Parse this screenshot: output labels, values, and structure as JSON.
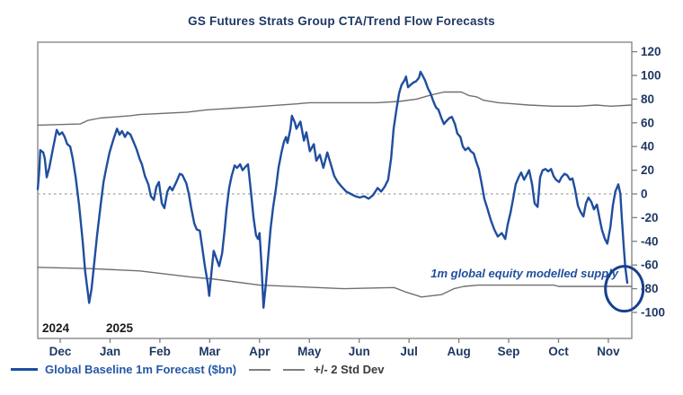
{
  "window": {
    "title": "GS Futures Strats Group CTA/Trend Flow Forecasts"
  },
  "legend": {
    "forecast_label": "Global Baseline 1m Forecast ($bn)",
    "stddev_label": "+/- 2 Std Dev"
  },
  "colors": {
    "line_blue": "#1f4e9e",
    "band_gray": "#6f6f6f",
    "text_navy": "#1f3864",
    "year_text": "#1a1a1a",
    "zero_dotted": "#b0b0b0",
    "axis": "#7f7f7f",
    "annotation_navy": "#17418c"
  },
  "chart_data": {
    "type": "line",
    "title": "GS Futures Strats Group CTA/Trend Flow Forecasts",
    "xlabel": "",
    "ylabel": "",
    "x_axis": {
      "unit": "months, Dec 2024 - Nov 2025 (0 = Dec tick)",
      "tick_labels": [
        "Dec",
        "Jan",
        "Feb",
        "Mar",
        "Apr",
        "May",
        "Jun",
        "Jul",
        "Aug",
        "Sep",
        "Oct",
        "Nov"
      ],
      "year_labels": [
        {
          "text": "2024",
          "pos": -0.09
        },
        {
          "text": "2025",
          "pos": 1.19
        }
      ]
    },
    "y_axis": {
      "side": "right",
      "ticks": [
        120,
        100,
        80,
        60,
        40,
        20,
        0,
        -20,
        -40,
        -60,
        -80,
        -100
      ],
      "range": [
        -122,
        128
      ]
    },
    "zero_line": true,
    "grid": false,
    "legend_position": "bottom-left",
    "annotation": {
      "text": "1m global equity modelled supply",
      "ellipse": {
        "cx_month": 11.32,
        "cy_value": -80
      }
    },
    "series": [
      {
        "name": "Global Baseline 1m Forecast ($bn)",
        "style": "solid",
        "width": 2.4,
        "color": "#1f4e9e",
        "points": [
          [
            -0.45,
            4
          ],
          [
            -0.42,
            20
          ],
          [
            -0.4,
            37
          ],
          [
            -0.34,
            35
          ],
          [
            -0.31,
            30
          ],
          [
            -0.27,
            14
          ],
          [
            -0.22,
            22
          ],
          [
            -0.16,
            35
          ],
          [
            -0.07,
            54
          ],
          [
            -0.02,
            50
          ],
          [
            0.04,
            52
          ],
          [
            0.09,
            48
          ],
          [
            0.14,
            42
          ],
          [
            0.2,
            40
          ],
          [
            0.25,
            30
          ],
          [
            0.31,
            14
          ],
          [
            0.38,
            -10
          ],
          [
            0.45,
            -40
          ],
          [
            0.5,
            -65
          ],
          [
            0.58,
            -92
          ],
          [
            0.63,
            -80
          ],
          [
            0.69,
            -55
          ],
          [
            0.74,
            -35
          ],
          [
            0.81,
            -10
          ],
          [
            0.87,
            10
          ],
          [
            0.92,
            21
          ],
          [
            0.99,
            35
          ],
          [
            1.06,
            45
          ],
          [
            1.14,
            55
          ],
          [
            1.19,
            50
          ],
          [
            1.24,
            53
          ],
          [
            1.3,
            48
          ],
          [
            1.35,
            52
          ],
          [
            1.41,
            50
          ],
          [
            1.46,
            45
          ],
          [
            1.53,
            38
          ],
          [
            1.59,
            30
          ],
          [
            1.64,
            25
          ],
          [
            1.7,
            15
          ],
          [
            1.77,
            8
          ],
          [
            1.82,
            -2
          ],
          [
            1.88,
            -5
          ],
          [
            1.93,
            6
          ],
          [
            1.98,
            10
          ],
          [
            2.04,
            -8
          ],
          [
            2.09,
            -12
          ],
          [
            2.15,
            2
          ],
          [
            2.2,
            6
          ],
          [
            2.25,
            3
          ],
          [
            2.33,
            10
          ],
          [
            2.4,
            17
          ],
          [
            2.45,
            16
          ],
          [
            2.53,
            9
          ],
          [
            2.58,
            0
          ],
          [
            2.63,
            -12
          ],
          [
            2.69,
            -25
          ],
          [
            2.74,
            -30
          ],
          [
            2.8,
            -31
          ],
          [
            2.85,
            -45
          ],
          [
            2.9,
            -60
          ],
          [
            2.96,
            -75
          ],
          [
            2.99,
            -86
          ],
          [
            3.05,
            -60
          ],
          [
            3.08,
            -48
          ],
          [
            3.14,
            -55
          ],
          [
            3.19,
            -61
          ],
          [
            3.25,
            -50
          ],
          [
            3.3,
            -30
          ],
          [
            3.34,
            -12
          ],
          [
            3.39,
            5
          ],
          [
            3.44,
            15
          ],
          [
            3.5,
            24
          ],
          [
            3.55,
            22
          ],
          [
            3.61,
            25
          ],
          [
            3.66,
            20
          ],
          [
            3.72,
            23
          ],
          [
            3.77,
            25
          ],
          [
            3.82,
            5
          ],
          [
            3.88,
            -20
          ],
          [
            3.93,
            -35
          ],
          [
            3.97,
            -38
          ],
          [
            4.0,
            -33
          ],
          [
            4.04,
            -60
          ],
          [
            4.08,
            -96
          ],
          [
            4.13,
            -75
          ],
          [
            4.17,
            -55
          ],
          [
            4.22,
            -30
          ],
          [
            4.27,
            -12
          ],
          [
            4.33,
            5
          ],
          [
            4.38,
            22
          ],
          [
            4.44,
            35
          ],
          [
            4.49,
            44
          ],
          [
            4.53,
            48
          ],
          [
            4.56,
            43
          ],
          [
            4.62,
            55
          ],
          [
            4.65,
            66
          ],
          [
            4.71,
            60
          ],
          [
            4.74,
            55
          ],
          [
            4.82,
            61
          ],
          [
            4.89,
            45
          ],
          [
            4.94,
            52
          ],
          [
            5.01,
            36
          ],
          [
            5.09,
            42
          ],
          [
            5.14,
            28
          ],
          [
            5.21,
            33
          ],
          [
            5.28,
            22
          ],
          [
            5.36,
            35
          ],
          [
            5.43,
            25
          ],
          [
            5.5,
            15
          ],
          [
            5.57,
            10
          ],
          [
            5.65,
            6
          ],
          [
            5.74,
            2
          ],
          [
            5.83,
            0
          ],
          [
            5.92,
            -2
          ],
          [
            6.01,
            -3
          ],
          [
            6.1,
            -2
          ],
          [
            6.19,
            -4
          ],
          [
            6.28,
            -1
          ],
          [
            6.37,
            5
          ],
          [
            6.44,
            2
          ],
          [
            6.51,
            6
          ],
          [
            6.58,
            12
          ],
          [
            6.64,
            30
          ],
          [
            6.69,
            55
          ],
          [
            6.75,
            72
          ],
          [
            6.8,
            85
          ],
          [
            6.85,
            92
          ],
          [
            6.91,
            96
          ],
          [
            6.94,
            99
          ],
          [
            6.98,
            90
          ],
          [
            7.03,
            92
          ],
          [
            7.09,
            94
          ],
          [
            7.14,
            95
          ],
          [
            7.2,
            98
          ],
          [
            7.23,
            103
          ],
          [
            7.27,
            100
          ],
          [
            7.32,
            96
          ],
          [
            7.38,
            89
          ],
          [
            7.43,
            85
          ],
          [
            7.49,
            78
          ],
          [
            7.54,
            73
          ],
          [
            7.59,
            71
          ],
          [
            7.65,
            64
          ],
          [
            7.7,
            59
          ],
          [
            7.76,
            62
          ],
          [
            7.81,
            64
          ],
          [
            7.86,
            65
          ],
          [
            7.92,
            59
          ],
          [
            7.97,
            51
          ],
          [
            8.03,
            48
          ],
          [
            8.08,
            40
          ],
          [
            8.13,
            37
          ],
          [
            8.19,
            39
          ],
          [
            8.24,
            36
          ],
          [
            8.3,
            34
          ],
          [
            8.35,
            27
          ],
          [
            8.4,
            21
          ],
          [
            8.46,
            8
          ],
          [
            8.51,
            -4
          ],
          [
            8.57,
            -12
          ],
          [
            8.64,
            -22
          ],
          [
            8.71,
            -30
          ],
          [
            8.78,
            -36
          ],
          [
            8.86,
            -33
          ],
          [
            8.93,
            -38
          ],
          [
            8.98,
            -26
          ],
          [
            9.04,
            -15
          ],
          [
            9.09,
            -4
          ],
          [
            9.14,
            8
          ],
          [
            9.2,
            14
          ],
          [
            9.25,
            18
          ],
          [
            9.31,
            12
          ],
          [
            9.36,
            16
          ],
          [
            9.41,
            20
          ],
          [
            9.47,
            8
          ],
          [
            9.52,
            -8
          ],
          [
            9.58,
            -11
          ],
          [
            9.63,
            14
          ],
          [
            9.68,
            20
          ],
          [
            9.74,
            21
          ],
          [
            9.79,
            19
          ],
          [
            9.85,
            21
          ],
          [
            9.9,
            15
          ],
          [
            9.95,
            12
          ],
          [
            10.01,
            10
          ],
          [
            10.06,
            14
          ],
          [
            10.12,
            17
          ],
          [
            10.17,
            16
          ],
          [
            10.23,
            12
          ],
          [
            10.28,
            13
          ],
          [
            10.33,
            4
          ],
          [
            10.39,
            -10
          ],
          [
            10.44,
            -15
          ],
          [
            10.5,
            -19
          ],
          [
            10.55,
            -8
          ],
          [
            10.6,
            -3
          ],
          [
            10.66,
            -7
          ],
          [
            10.71,
            -13
          ],
          [
            10.77,
            -9
          ],
          [
            10.82,
            -20
          ],
          [
            10.87,
            -30
          ],
          [
            10.93,
            -38
          ],
          [
            10.98,
            -42
          ],
          [
            11.04,
            -28
          ],
          [
            11.09,
            -10
          ],
          [
            11.14,
            2
          ],
          [
            11.2,
            8
          ],
          [
            11.24,
            0
          ],
          [
            11.27,
            -20
          ],
          [
            11.31,
            -45
          ],
          [
            11.34,
            -62
          ],
          [
            11.38,
            -75
          ]
        ]
      },
      {
        "name": "+2 Std Dev",
        "style": "solid",
        "width": 1.4,
        "color": "#6f6f6f",
        "points": [
          [
            -0.45,
            58
          ],
          [
            0.4,
            59
          ],
          [
            0.55,
            62
          ],
          [
            0.8,
            64
          ],
          [
            1.4,
            66
          ],
          [
            1.6,
            67
          ],
          [
            2.55,
            69
          ],
          [
            2.95,
            71
          ],
          [
            3.75,
            73
          ],
          [
            4.75,
            76
          ],
          [
            5.0,
            77
          ],
          [
            6.35,
            77
          ],
          [
            6.8,
            78
          ],
          [
            7.15,
            80
          ],
          [
            7.4,
            83
          ],
          [
            7.7,
            86
          ],
          [
            8.05,
            86
          ],
          [
            8.2,
            83
          ],
          [
            8.35,
            82
          ],
          [
            8.5,
            79
          ],
          [
            8.8,
            77
          ],
          [
            9.1,
            76
          ],
          [
            9.4,
            75
          ],
          [
            9.9,
            74
          ],
          [
            10.4,
            74
          ],
          [
            10.75,
            75
          ],
          [
            11.05,
            74
          ],
          [
            11.47,
            75
          ]
        ]
      },
      {
        "name": "-2 Std Dev",
        "style": "solid",
        "width": 1.4,
        "color": "#6f6f6f",
        "points": [
          [
            -0.45,
            -62
          ],
          [
            0.6,
            -63
          ],
          [
            1.6,
            -65
          ],
          [
            2.6,
            -70
          ],
          [
            3.1,
            -72
          ],
          [
            4.0,
            -77
          ],
          [
            5.7,
            -80
          ],
          [
            6.7,
            -79
          ],
          [
            6.95,
            -83
          ],
          [
            7.25,
            -87
          ],
          [
            7.65,
            -85
          ],
          [
            7.9,
            -80
          ],
          [
            8.1,
            -78
          ],
          [
            8.4,
            -77
          ],
          [
            9.9,
            -77
          ],
          [
            10.0,
            -78
          ],
          [
            11.0,
            -78
          ],
          [
            11.47,
            -78
          ]
        ]
      }
    ]
  }
}
